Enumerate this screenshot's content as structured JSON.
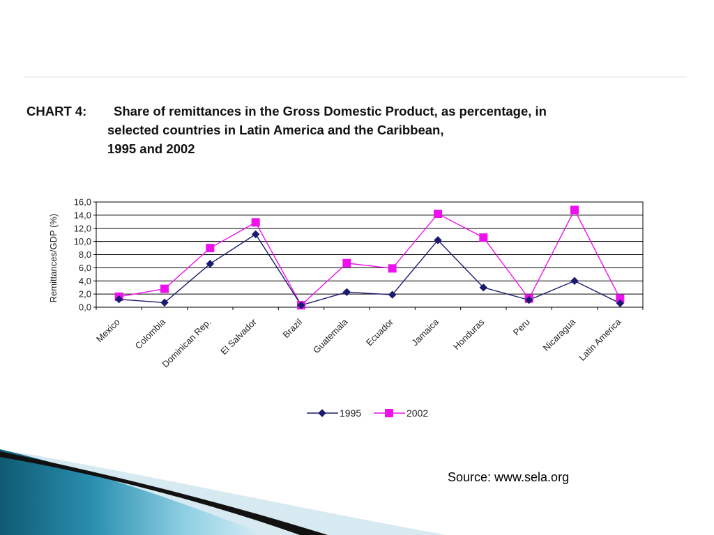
{
  "slide": {
    "title": {
      "label": "CHART 4:",
      "line1": "Share of remittances in the Gross Domestic Product, as percentage, in",
      "line2": "selected countries in Latin America and the Caribbean,",
      "line3": "1995 and 2002"
    },
    "source": "Source: www.sela.org"
  },
  "chart_data": {
    "type": "line",
    "categories": [
      "Mexico",
      "Colombia",
      "Dominican Rep.",
      "El Salvador",
      "Brazil",
      "Guatemala",
      "Ecuador",
      "Jamaica",
      "Honduras",
      "Peru",
      "Nicaragua",
      "Latin America"
    ],
    "series": [
      {
        "name": "1995",
        "color": "#1a1a6e",
        "marker": "diamond",
        "values": [
          1.2,
          0.7,
          6.6,
          11.1,
          0.3,
          2.3,
          1.9,
          10.2,
          3.0,
          1.1,
          4.0,
          0.6
        ]
      },
      {
        "name": "2002",
        "color": "#ee11ee",
        "marker": "square",
        "values": [
          1.6,
          2.8,
          9.0,
          12.9,
          0.3,
          6.7,
          5.9,
          14.2,
          10.6,
          1.3,
          14.8,
          1.3
        ]
      }
    ],
    "ylabel": "Remittances/GDP  (%)",
    "xlabel": "",
    "ylim": [
      0,
      16
    ],
    "yticks": [
      "0,0",
      "2,0",
      "4,0",
      "6,0",
      "8,0",
      "10,0",
      "12,0",
      "14,0",
      "16,0"
    ],
    "grid": true,
    "legend_position": "bottom"
  }
}
